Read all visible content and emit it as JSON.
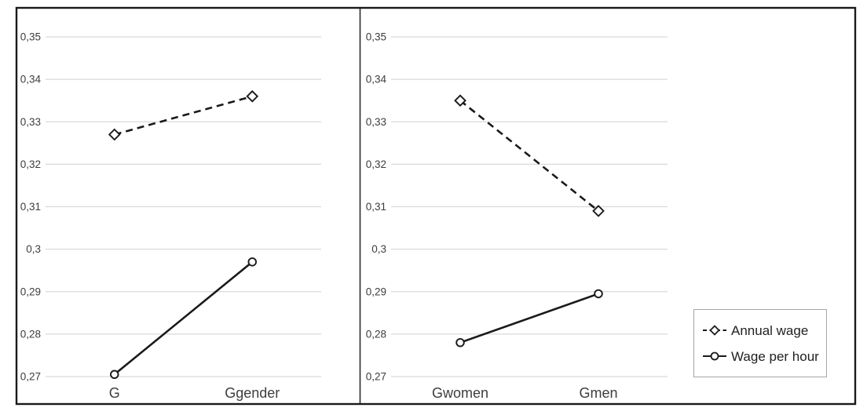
{
  "figure": {
    "background": "#ffffff",
    "frame_color": "#1a1a1a",
    "divider_color": "#2b2b2b",
    "grid_color": "#d9d9d9",
    "text_color": "#3d3d3d",
    "series_color": "#1a1a1a",
    "legend_border_color": "#a6a6a6"
  },
  "chart_data": [
    {
      "type": "line",
      "title": "",
      "xlabel": "",
      "ylabel": "",
      "grid": true,
      "categories": [
        "G",
        "Ggender"
      ],
      "series": [
        {
          "name": "Annual wage",
          "line": "dashed",
          "marker": "diamond",
          "values": [
            0.327,
            0.336
          ]
        },
        {
          "name": "Wage per hour",
          "line": "solid",
          "marker": "circle",
          "values": [
            0.2705,
            0.297
          ]
        }
      ],
      "ylim": [
        0.27,
        0.35
      ],
      "yticks": [
        {
          "value": 0.35,
          "label": "0,35"
        },
        {
          "value": 0.34,
          "label": "0,34"
        },
        {
          "value": 0.33,
          "label": "0,33"
        },
        {
          "value": 0.32,
          "label": "0,32"
        },
        {
          "value": 0.31,
          "label": "0,31"
        },
        {
          "value": 0.3,
          "label": "0,3"
        },
        {
          "value": 0.29,
          "label": "0,29"
        },
        {
          "value": 0.28,
          "label": "0,28"
        },
        {
          "value": 0.27,
          "label": "0,27"
        }
      ],
      "legend_position": "none"
    },
    {
      "type": "line",
      "title": "",
      "xlabel": "",
      "ylabel": "",
      "grid": true,
      "categories": [
        "Gwomen",
        "Gmen"
      ],
      "series": [
        {
          "name": "Annual wage",
          "line": "dashed",
          "marker": "diamond",
          "values": [
            0.335,
            0.309
          ]
        },
        {
          "name": "Wage per hour",
          "line": "solid",
          "marker": "circle",
          "values": [
            0.278,
            0.2895
          ]
        }
      ],
      "ylim": [
        0.27,
        0.35
      ],
      "yticks": [
        {
          "value": 0.35,
          "label": "0,35"
        },
        {
          "value": 0.34,
          "label": "0,34"
        },
        {
          "value": 0.33,
          "label": "0,33"
        },
        {
          "value": 0.32,
          "label": "0,32"
        },
        {
          "value": 0.31,
          "label": "0,31"
        },
        {
          "value": 0.3,
          "label": "0,3"
        },
        {
          "value": 0.29,
          "label": "0,29"
        },
        {
          "value": 0.28,
          "label": "0,28"
        },
        {
          "value": 0.27,
          "label": "0,27"
        }
      ],
      "legend_position": "right"
    }
  ],
  "legend": {
    "items": [
      {
        "label": "Annual wage",
        "marker": "diamond",
        "line": "dashed"
      },
      {
        "label": "Wage per hour",
        "marker": "circle",
        "line": "solid"
      }
    ]
  }
}
